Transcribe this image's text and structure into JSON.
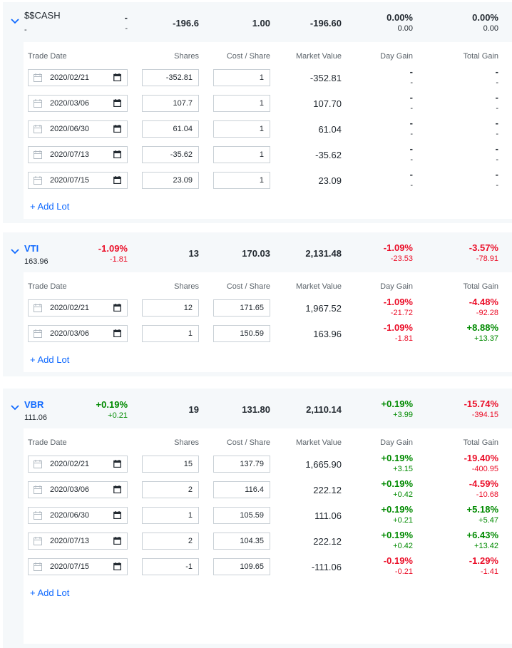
{
  "headers": {
    "trade_date": "Trade Date",
    "shares": "Shares",
    "cost_share": "Cost / Share",
    "market_value": "Market Value",
    "day_gain": "Day Gain",
    "total_gain": "Total Gain"
  },
  "add_lot_label": "+ Add Lot",
  "colors": {
    "accent": "#0f69ff",
    "gain": "#008a00",
    "loss": "#eb0f29"
  },
  "holdings": [
    {
      "symbol": "$$CASH",
      "price": "-",
      "change_pct": "-",
      "change_abs": "-",
      "shares": "-196.6",
      "cost_share": "1.00",
      "market_value": "-196.60",
      "day_gain_pct": "0.00%",
      "day_gain_abs": "0.00",
      "total_gain_pct": "0.00%",
      "total_gain_abs": "0.00",
      "lots": [
        {
          "date": "2020/02/21",
          "shares": "-352.81",
          "cost": "1",
          "mv": "-352.81",
          "dg_pct": "-",
          "dg_abs": "-",
          "tg_pct": "-",
          "tg_abs": "-"
        },
        {
          "date": "2020/03/06",
          "shares": "107.7",
          "cost": "1",
          "mv": "107.70",
          "dg_pct": "-",
          "dg_abs": "-",
          "tg_pct": "-",
          "tg_abs": "-"
        },
        {
          "date": "2020/06/30",
          "shares": "61.04",
          "cost": "1",
          "mv": "61.04",
          "dg_pct": "-",
          "dg_abs": "-",
          "tg_pct": "-",
          "tg_abs": "-"
        },
        {
          "date": "2020/07/13",
          "shares": "-35.62",
          "cost": "1",
          "mv": "-35.62",
          "dg_pct": "-",
          "dg_abs": "-",
          "tg_pct": "-",
          "tg_abs": "-"
        },
        {
          "date": "2020/07/15",
          "shares": "23.09",
          "cost": "1",
          "mv": "23.09",
          "dg_pct": "-",
          "dg_abs": "-",
          "tg_pct": "-",
          "tg_abs": "-"
        }
      ]
    },
    {
      "symbol": "VTI",
      "price": "163.96",
      "change_pct": "-1.09%",
      "change_abs": "-1.81",
      "shares": "13",
      "cost_share": "170.03",
      "market_value": "2,131.48",
      "day_gain_pct": "-1.09%",
      "day_gain_abs": "-23.53",
      "total_gain_pct": "-3.57%",
      "total_gain_abs": "-78.91",
      "lots": [
        {
          "date": "2020/02/21",
          "shares": "12",
          "cost": "171.65",
          "mv": "1,967.52",
          "dg_pct": "-1.09%",
          "dg_abs": "-21.72",
          "tg_pct": "-4.48%",
          "tg_abs": "-92.28"
        },
        {
          "date": "2020/03/06",
          "shares": "1",
          "cost": "150.59",
          "mv": "163.96",
          "dg_pct": "-1.09%",
          "dg_abs": "-1.81",
          "tg_pct": "+8.88%",
          "tg_abs": "+13.37"
        }
      ]
    },
    {
      "symbol": "VBR",
      "price": "111.06",
      "change_pct": "+0.19%",
      "change_abs": "+0.21",
      "shares": "19",
      "cost_share": "131.80",
      "market_value": "2,110.14",
      "day_gain_pct": "+0.19%",
      "day_gain_abs": "+3.99",
      "total_gain_pct": "-15.74%",
      "total_gain_abs": "-394.15",
      "lots": [
        {
          "date": "2020/02/21",
          "shares": "15",
          "cost": "137.79",
          "mv": "1,665.90",
          "dg_pct": "+0.19%",
          "dg_abs": "+3.15",
          "tg_pct": "-19.40%",
          "tg_abs": "-400.95"
        },
        {
          "date": "2020/03/06",
          "shares": "2",
          "cost": "116.4",
          "mv": "222.12",
          "dg_pct": "+0.19%",
          "dg_abs": "+0.42",
          "tg_pct": "-4.59%",
          "tg_abs": "-10.68"
        },
        {
          "date": "2020/06/30",
          "shares": "1",
          "cost": "105.59",
          "mv": "111.06",
          "dg_pct": "+0.19%",
          "dg_abs": "+0.21",
          "tg_pct": "+5.18%",
          "tg_abs": "+5.47"
        },
        {
          "date": "2020/07/13",
          "shares": "2",
          "cost": "104.35",
          "mv": "222.12",
          "dg_pct": "+0.19%",
          "dg_abs": "+0.42",
          "tg_pct": "+6.43%",
          "tg_abs": "+13.42"
        },
        {
          "date": "2020/07/15",
          "shares": "-1",
          "cost": "109.65",
          "mv": "-111.06",
          "dg_pct": "-0.19%",
          "dg_abs": "-0.21",
          "tg_pct": "-1.29%",
          "tg_abs": "-1.41"
        }
      ]
    }
  ]
}
